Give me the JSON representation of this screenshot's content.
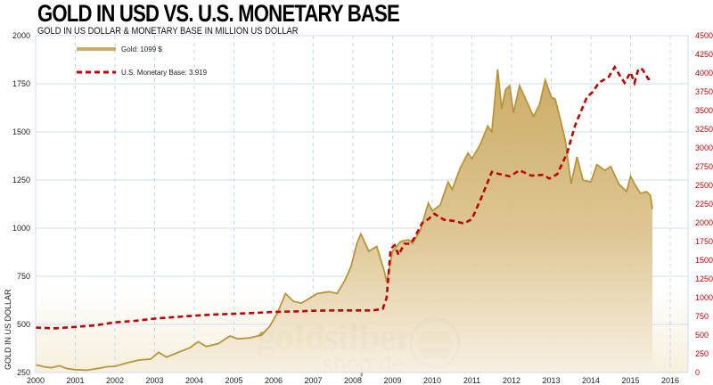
{
  "chart_data": {
    "type": "area",
    "title": "GOLD IN USD VS. U.S. MONETARY BASE",
    "subtitle": "GOLD IN US DOLLAR & MONETARY BASE IN MILLION US DOLLAR",
    "ylabel": "GOLD IN US DOLLAR",
    "ylim": [
      250,
      2000
    ],
    "y2lim": [
      0,
      4500
    ],
    "xlim": [
      2000,
      2016
    ],
    "yticks": [
      "250",
      "500",
      "750",
      "1000",
      "1250",
      "1500",
      "1750",
      "2000"
    ],
    "y2ticks": [
      "0",
      "250",
      "500",
      "750",
      "1000",
      "1250",
      "1500",
      "1750",
      "2000",
      "2250",
      "2500",
      "2750",
      "3000",
      "3250",
      "3500",
      "3750",
      "4000",
      "4250",
      "4500"
    ],
    "xticks": [
      "2000",
      "2001",
      "2002",
      "2003",
      "2004",
      "2005",
      "2006",
      "2007",
      "2008",
      "2009",
      "2010",
      "2011",
      "2012",
      "2013",
      "2014",
      "2015",
      "2016"
    ],
    "grid": true,
    "legend_position": "top-left",
    "series": [
      {
        "name": "Gold",
        "legend": "Gold:  1099 $",
        "axis": "left",
        "color": "#b8943a",
        "points": [
          [
            2000,
            290
          ],
          [
            2000.2,
            280
          ],
          [
            2000.4,
            275
          ],
          [
            2000.6,
            285
          ],
          [
            2000.8,
            270
          ],
          [
            2001,
            265
          ],
          [
            2001.3,
            262
          ],
          [
            2001.6,
            272
          ],
          [
            2001.8,
            280
          ],
          [
            2002,
            282
          ],
          [
            2002.3,
            300
          ],
          [
            2002.6,
            315
          ],
          [
            2002.9,
            320
          ],
          [
            2003.1,
            355
          ],
          [
            2003.3,
            330
          ],
          [
            2003.6,
            355
          ],
          [
            2003.9,
            380
          ],
          [
            2004.1,
            410
          ],
          [
            2004.3,
            385
          ],
          [
            2004.6,
            400
          ],
          [
            2004.9,
            440
          ],
          [
            2005.1,
            425
          ],
          [
            2005.4,
            430
          ],
          [
            2005.7,
            445
          ],
          [
            2005.9,
            490
          ],
          [
            2006.1,
            560
          ],
          [
            2006.3,
            660
          ],
          [
            2006.5,
            620
          ],
          [
            2006.7,
            610
          ],
          [
            2006.9,
            635
          ],
          [
            2007.1,
            660
          ],
          [
            2007.4,
            670
          ],
          [
            2007.6,
            660
          ],
          [
            2007.8,
            730
          ],
          [
            2007.95,
            800
          ],
          [
            2008.1,
            920
          ],
          [
            2008.2,
            970
          ],
          [
            2008.4,
            880
          ],
          [
            2008.6,
            905
          ],
          [
            2008.8,
            770
          ],
          [
            2008.85,
            720
          ],
          [
            2009,
            880
          ],
          [
            2009.2,
            930
          ],
          [
            2009.4,
            940
          ],
          [
            2009.5,
            920
          ],
          [
            2009.7,
            990
          ],
          [
            2009.9,
            1130
          ],
          [
            2010,
            1090
          ],
          [
            2010.2,
            1120
          ],
          [
            2010.4,
            1240
          ],
          [
            2010.5,
            1200
          ],
          [
            2010.7,
            1310
          ],
          [
            2010.9,
            1390
          ],
          [
            2011,
            1360
          ],
          [
            2011.2,
            1430
          ],
          [
            2011.4,
            1530
          ],
          [
            2011.5,
            1500
          ],
          [
            2011.65,
            1825
          ],
          [
            2011.75,
            1620
          ],
          [
            2011.85,
            1720
          ],
          [
            2011.95,
            1740
          ],
          [
            2012.05,
            1600
          ],
          [
            2012.2,
            1740
          ],
          [
            2012.4,
            1650
          ],
          [
            2012.55,
            1580
          ],
          [
            2012.7,
            1640
          ],
          [
            2012.85,
            1770
          ],
          [
            2013,
            1680
          ],
          [
            2013.1,
            1670
          ],
          [
            2013.2,
            1590
          ],
          [
            2013.35,
            1460
          ],
          [
            2013.5,
            1230
          ],
          [
            2013.65,
            1370
          ],
          [
            2013.8,
            1250
          ],
          [
            2014,
            1240
          ],
          [
            2014.15,
            1330
          ],
          [
            2014.35,
            1300
          ],
          [
            2014.5,
            1320
          ],
          [
            2014.7,
            1230
          ],
          [
            2014.9,
            1190
          ],
          [
            2015,
            1270
          ],
          [
            2015.1,
            1230
          ],
          [
            2015.25,
            1180
          ],
          [
            2015.4,
            1190
          ],
          [
            2015.5,
            1170
          ],
          [
            2015.55,
            1099
          ]
        ]
      },
      {
        "name": "U.S. Monetary Base",
        "legend": "U.S. Monetary Base:   3.919",
        "axis": "right",
        "color": "#c00000",
        "points": [
          [
            2000,
            600
          ],
          [
            2000.5,
            590
          ],
          [
            2001,
            610
          ],
          [
            2001.5,
            630
          ],
          [
            2002,
            670
          ],
          [
            2002.5,
            690
          ],
          [
            2003,
            720
          ],
          [
            2003.5,
            740
          ],
          [
            2004,
            760
          ],
          [
            2004.5,
            775
          ],
          [
            2005,
            785
          ],
          [
            2005.5,
            795
          ],
          [
            2006,
            810
          ],
          [
            2006.5,
            815
          ],
          [
            2007,
            825
          ],
          [
            2007.5,
            830
          ],
          [
            2008,
            830
          ],
          [
            2008.5,
            830
          ],
          [
            2008.75,
            850
          ],
          [
            2008.85,
            1000
          ],
          [
            2008.95,
            1650
          ],
          [
            2009.05,
            1700
          ],
          [
            2009.15,
            1570
          ],
          [
            2009.3,
            1720
          ],
          [
            2009.45,
            1720
          ],
          [
            2009.55,
            1800
          ],
          [
            2009.75,
            2000
          ],
          [
            2009.9,
            2050
          ],
          [
            2010.05,
            2120
          ],
          [
            2010.3,
            2040
          ],
          [
            2010.6,
            2020
          ],
          [
            2010.8,
            1990
          ],
          [
            2011,
            2050
          ],
          [
            2011.25,
            2350
          ],
          [
            2011.5,
            2680
          ],
          [
            2011.7,
            2650
          ],
          [
            2011.95,
            2620
          ],
          [
            2012.2,
            2700
          ],
          [
            2012.5,
            2630
          ],
          [
            2012.8,
            2640
          ],
          [
            2012.95,
            2590
          ],
          [
            2013.15,
            2650
          ],
          [
            2013.4,
            2930
          ],
          [
            2013.6,
            3300
          ],
          [
            2013.9,
            3680
          ],
          [
            2014.05,
            3750
          ],
          [
            2014.2,
            3870
          ],
          [
            2014.45,
            3950
          ],
          [
            2014.6,
            4080
          ],
          [
            2014.75,
            3950
          ],
          [
            2014.85,
            3870
          ],
          [
            2015,
            4010
          ],
          [
            2015.1,
            3870
          ],
          [
            2015.2,
            4060
          ],
          [
            2015.3,
            4050
          ],
          [
            2015.45,
            3920
          ],
          [
            2015.55,
            3919
          ]
        ]
      }
    ],
    "watermark": {
      "line1a": "gold",
      "line1b": "silber",
      "line2": "shop.de"
    }
  }
}
